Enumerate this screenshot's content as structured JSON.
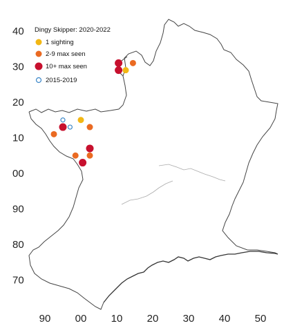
{
  "legend": {
    "title": "Dingy Skipper:  2020-2022",
    "entries": [
      {
        "label": "1 sighting",
        "color": "#f2b714",
        "style": "filled"
      },
      {
        "label": "2-9 max seen",
        "color": "#ea6a22",
        "style": "filled"
      },
      {
        "label": "10+ max seen",
        "color": "#c7102e",
        "style": "filled"
      },
      {
        "label": "2015-2019",
        "color": "#3a86c8",
        "style": "hollow"
      }
    ]
  },
  "axes": {
    "x_ticks": [
      "90",
      "00",
      "10",
      "20",
      "30",
      "40",
      "50"
    ],
    "y_ticks": [
      "40",
      "30",
      "20",
      "10",
      "00",
      "90",
      "80",
      "70"
    ]
  },
  "chart_data": {
    "type": "scatter",
    "x_ticks": [
      "90",
      "00",
      "10",
      "20",
      "30",
      "40",
      "50"
    ],
    "y_ticks": [
      "40",
      "30",
      "20",
      "10",
      "00",
      "90",
      "80",
      "70"
    ],
    "series": [
      {
        "name": "1 sighting",
        "color": "#f2b714",
        "points": [
          [
            0,
            15
          ],
          [
            12.5,
            29
          ]
        ]
      },
      {
        "name": "2-9 max seen",
        "color": "#ea6a22",
        "points": [
          [
            14.5,
            31
          ],
          [
            2.5,
            13
          ],
          [
            -7.5,
            11
          ],
          [
            -1.5,
            5
          ],
          [
            2.5,
            5
          ]
        ]
      },
      {
        "name": "10+ max seen",
        "color": "#c7102e",
        "points": [
          [
            10.5,
            31
          ],
          [
            10.5,
            29
          ],
          [
            -5,
            13
          ],
          [
            2.5,
            7
          ],
          [
            0.5,
            3
          ]
        ]
      },
      {
        "name": "2015-2019",
        "color": "#3a86c8",
        "hollow": true,
        "points": [
          [
            -5,
            15
          ],
          [
            -3,
            13
          ]
        ]
      }
    ]
  }
}
